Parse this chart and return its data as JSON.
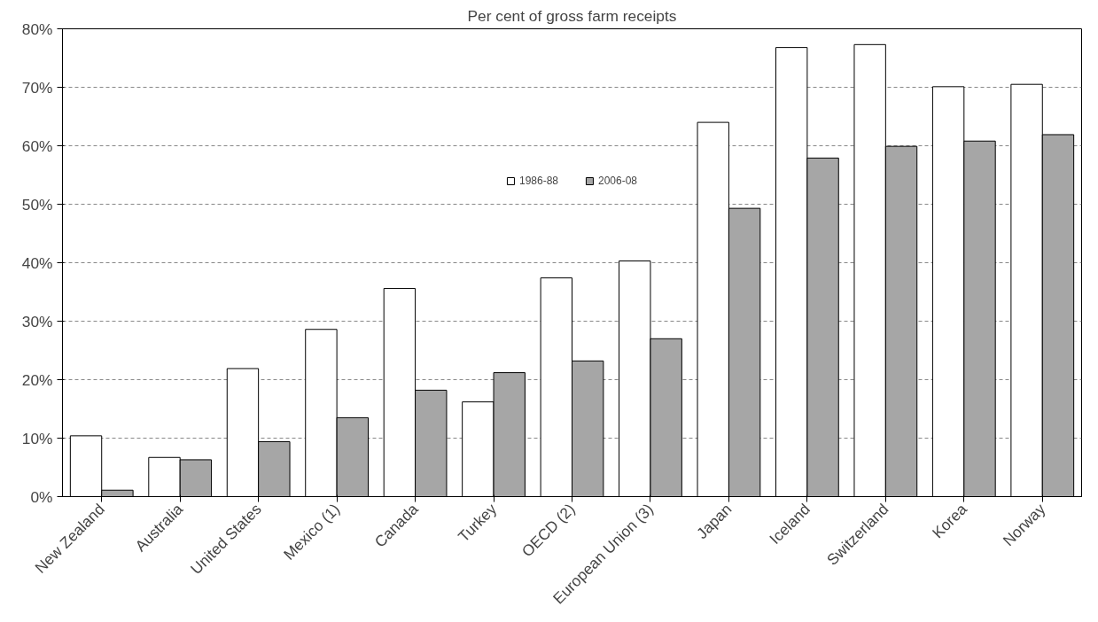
{
  "chart_data": {
    "type": "bar",
    "title": "Per cent of gross farm receipts",
    "categories": [
      "New Zealand",
      "Australia",
      "United States",
      "Mexico (1)",
      "Canada",
      "Turkey",
      "OECD (2)",
      "European Union (3)",
      "Japan",
      "Iceland",
      "Switzerland",
      "Korea",
      "Norway"
    ],
    "series": [
      {
        "name": "1986-88",
        "color": "#ffffff",
        "values": [
          10.4,
          6.7,
          21.9,
          28.6,
          35.6,
          16.2,
          37.4,
          40.3,
          64.0,
          76.8,
          77.3,
          70.1,
          70.5
        ]
      },
      {
        "name": "2006-08",
        "color": "#a6a6a6",
        "values": [
          1.1,
          6.3,
          9.4,
          13.5,
          18.2,
          21.2,
          23.2,
          27.0,
          49.3,
          57.9,
          59.9,
          60.8,
          61.9
        ]
      }
    ],
    "ylim": [
      0,
      80
    ],
    "yticks": [
      {
        "value": 0,
        "label": "0%"
      },
      {
        "value": 10,
        "label": "10%"
      },
      {
        "value": 20,
        "label": "20%"
      },
      {
        "value": 30,
        "label": "30%"
      },
      {
        "value": 40,
        "label": "40%"
      },
      {
        "value": 50,
        "label": "50%"
      },
      {
        "value": 60,
        "label": "60%"
      },
      {
        "value": 70,
        "label": "70%"
      },
      {
        "value": 80,
        "label": "80%"
      }
    ],
    "grid": "y",
    "legend": "top"
  }
}
